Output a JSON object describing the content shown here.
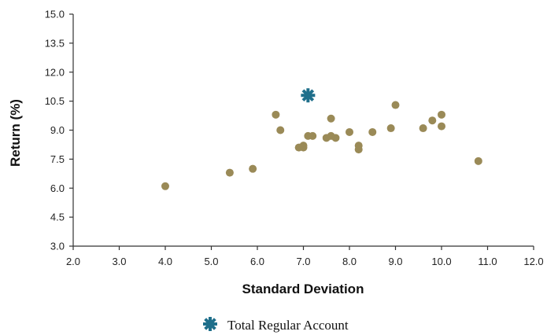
{
  "chart_data": {
    "type": "scatter",
    "title": "",
    "xlabel": "Standard Deviation",
    "ylabel": "Return (%)",
    "xlim": [
      2.0,
      12.0
    ],
    "ylim": [
      3.0,
      15.0
    ],
    "x_ticks": [
      "2.0",
      "3.0",
      "4.0",
      "5.0",
      "6.0",
      "7.0",
      "8.0",
      "9.0",
      "10.0",
      "11.0",
      "12.0"
    ],
    "y_ticks": [
      "3.0",
      "4.5",
      "6.0",
      "7.5",
      "9.0",
      "10.5",
      "12.0",
      "13.5",
      "15.0"
    ],
    "grid": false,
    "legend_position": "bottom-center",
    "series": [
      {
        "color": "#9a8a57",
        "marker": "circle",
        "points": [
          {
            "x": 4.0,
            "y": 6.1
          },
          {
            "x": 5.4,
            "y": 6.8
          },
          {
            "x": 5.9,
            "y": 7.0
          },
          {
            "x": 6.4,
            "y": 9.8
          },
          {
            "x": 6.5,
            "y": 9.0
          },
          {
            "x": 6.9,
            "y": 8.1
          },
          {
            "x": 7.0,
            "y": 8.2
          },
          {
            "x": 7.0,
            "y": 8.1
          },
          {
            "x": 7.1,
            "y": 8.7
          },
          {
            "x": 7.2,
            "y": 8.7
          },
          {
            "x": 7.5,
            "y": 8.6
          },
          {
            "x": 7.6,
            "y": 9.6
          },
          {
            "x": 7.6,
            "y": 8.7
          },
          {
            "x": 7.7,
            "y": 8.6
          },
          {
            "x": 8.0,
            "y": 8.9
          },
          {
            "x": 8.2,
            "y": 8.2
          },
          {
            "x": 8.2,
            "y": 8.0
          },
          {
            "x": 8.5,
            "y": 8.9
          },
          {
            "x": 8.9,
            "y": 9.1
          },
          {
            "x": 9.0,
            "y": 10.3
          },
          {
            "x": 9.6,
            "y": 9.1
          },
          {
            "x": 9.8,
            "y": 9.5
          },
          {
            "x": 10.0,
            "y": 9.8
          },
          {
            "x": 10.0,
            "y": 9.2
          },
          {
            "x": 10.8,
            "y": 7.4
          }
        ]
      },
      {
        "name": "Total Regular Account",
        "color": "#1f6f8b",
        "marker": "asterisk",
        "points": [
          {
            "x": 7.1,
            "y": 10.8
          }
        ]
      }
    ]
  }
}
